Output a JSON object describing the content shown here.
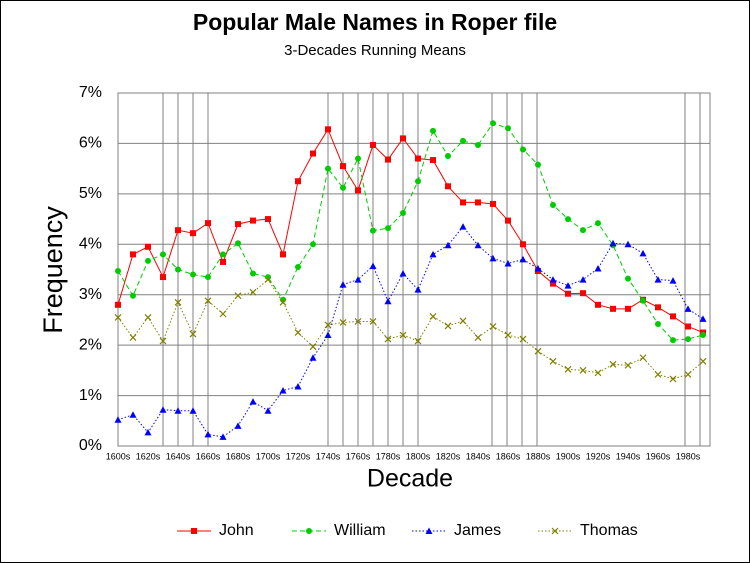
{
  "chart_data": {
    "type": "line",
    "title": "Popular Male Names in Roper file",
    "subtitle": "3-Decades Running Means",
    "y_label": "Frequency",
    "x_label": "Decade",
    "categories": [
      "1600s",
      null,
      "1620s",
      null,
      "1640s",
      null,
      "1660s",
      null,
      "1680s",
      null,
      "1700s",
      null,
      "1720s",
      null,
      "1740s",
      null,
      "1760s",
      null,
      "1780s",
      null,
      "1800s",
      null,
      "1820s",
      null,
      "1840s",
      null,
      "1860s",
      null,
      "1880s",
      null,
      "1900s",
      null,
      "1920s",
      null,
      "1940s",
      null,
      "1960s",
      null,
      "1980s",
      null
    ],
    "ylim": [
      0,
      7
    ],
    "yticks": [
      {
        "value": 0,
        "label": "0%"
      },
      {
        "value": 1,
        "label": "1%"
      },
      {
        "value": 2,
        "label": "2%"
      },
      {
        "value": 3,
        "label": "3%"
      },
      {
        "value": 4,
        "label": "4%"
      },
      {
        "value": 5,
        "label": "5%"
      },
      {
        "value": 6,
        "label": "6%"
      },
      {
        "value": 7,
        "label": "7%"
      }
    ],
    "grid": true,
    "legend": "bottom",
    "series": [
      {
        "name": "John",
        "color": "#ff0000",
        "marker": "square",
        "line_style": "solid",
        "values": [
          2.8,
          3.8,
          3.95,
          3.35,
          4.28,
          4.22,
          4.42,
          3.65,
          4.4,
          4.47,
          4.5,
          3.8,
          5.25,
          5.8,
          6.28,
          5.55,
          5.07,
          5.97,
          5.68,
          6.1,
          5.7,
          5.67,
          5.15,
          4.83,
          4.83,
          4.8,
          4.47,
          4.0,
          3.47,
          3.22,
          3.02,
          3.03,
          2.8,
          2.72,
          2.72,
          2.9,
          2.75,
          2.57,
          2.37,
          2.25
        ]
      },
      {
        "name": "William",
        "color": "#00cc00",
        "marker": "circle",
        "line_style": "dashed",
        "values": [
          3.47,
          2.98,
          3.67,
          3.8,
          3.5,
          3.4,
          3.35,
          3.8,
          4.02,
          3.42,
          3.35,
          2.9,
          3.55,
          4.0,
          5.5,
          5.12,
          5.7,
          4.27,
          4.32,
          4.62,
          5.25,
          6.25,
          5.75,
          6.05,
          5.97,
          6.4,
          6.3,
          5.88,
          5.58,
          4.78,
          4.5,
          4.28,
          4.42,
          3.98,
          3.32,
          2.88,
          2.42,
          2.1,
          2.12,
          2.2
        ]
      },
      {
        "name": "James",
        "color": "#0000ff",
        "marker": "triangle",
        "line_style": "dotted",
        "values": [
          0.52,
          0.62,
          0.27,
          0.72,
          0.7,
          0.7,
          0.23,
          0.18,
          0.4,
          0.88,
          0.7,
          1.1,
          1.18,
          1.75,
          2.2,
          3.2,
          3.3,
          3.57,
          2.87,
          3.42,
          3.1,
          3.8,
          3.98,
          4.35,
          3.98,
          3.72,
          3.62,
          3.7,
          3.52,
          3.3,
          3.18,
          3.3,
          3.52,
          4.02,
          4.0,
          3.82,
          3.3,
          3.28,
          2.72,
          2.52
        ]
      },
      {
        "name": "Thomas",
        "color": "#808000",
        "marker": "x",
        "line_style": "dotted",
        "values": [
          2.55,
          2.15,
          2.55,
          2.08,
          2.85,
          2.22,
          2.88,
          2.62,
          2.98,
          3.05,
          3.3,
          2.85,
          2.25,
          1.97,
          2.4,
          2.45,
          2.47,
          2.47,
          2.12,
          2.2,
          2.08,
          2.57,
          2.38,
          2.48,
          2.15,
          2.37,
          2.2,
          2.12,
          1.88,
          1.68,
          1.52,
          1.5,
          1.45,
          1.62,
          1.6,
          1.75,
          1.42,
          1.33,
          1.42,
          1.68
        ]
      }
    ]
  }
}
